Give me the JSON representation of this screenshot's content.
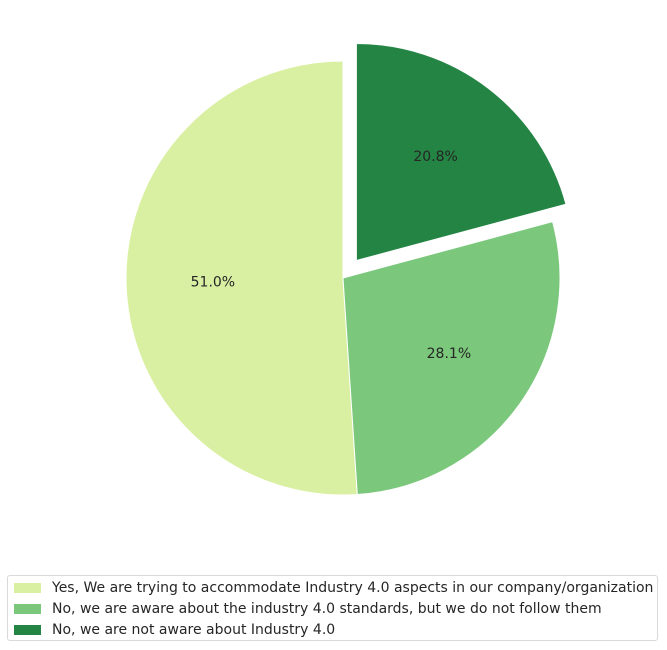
{
  "chart_data": {
    "type": "pie",
    "slices": [
      {
        "label": "Yes, We are trying to accommodate Industry 4.0 aspects in our company/organization",
        "value": 51.0,
        "pct_label": "51.0%",
        "color": "#d9f0a3",
        "exploded": false
      },
      {
        "label": "No, we are aware about the industry 4.0 standards, but we do not follow them",
        "value": 28.1,
        "pct_label": "28.1%",
        "color": "#7bc87c",
        "exploded": false
      },
      {
        "label": "No, we are not aware about Industry 4.0",
        "value": 20.8,
        "pct_label": "20.8%",
        "color": "#238443",
        "exploded": true
      }
    ],
    "start_angle": 90,
    "direction": "counterclockwise",
    "legend_position": "bottom"
  }
}
